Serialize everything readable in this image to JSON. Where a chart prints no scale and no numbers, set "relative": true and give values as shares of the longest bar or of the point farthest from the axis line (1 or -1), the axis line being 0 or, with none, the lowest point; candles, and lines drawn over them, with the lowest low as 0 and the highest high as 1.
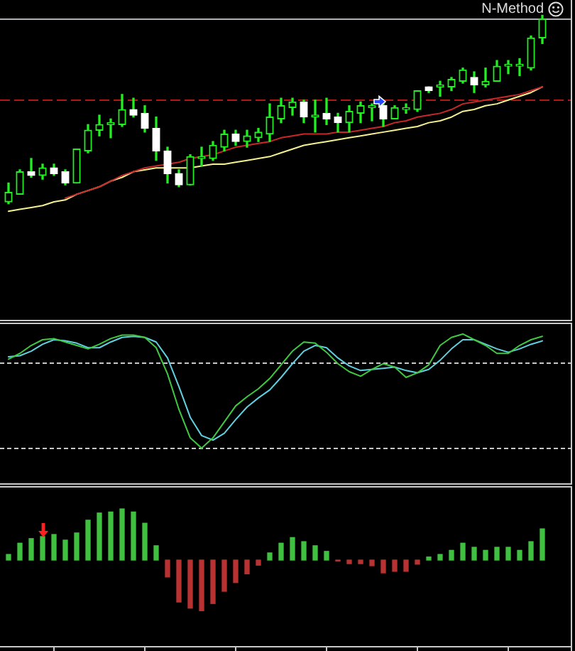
{
  "chart_data": [
    {
      "type": "candlestick",
      "relative": true,
      "title": "N-Method",
      "marker": "none",
      "categories": [
        null,
        null,
        null,
        null,
        null,
        null,
        null,
        null,
        null,
        null,
        null,
        null,
        null,
        null,
        null,
        null,
        null,
        null,
        null,
        null,
        null,
        null,
        null,
        null,
        null,
        null,
        null,
        null,
        null,
        null,
        null,
        null,
        null,
        null,
        null,
        null,
        null,
        null,
        null,
        null,
        null,
        null,
        null,
        null,
        null,
        null,
        null,
        null
      ],
      "ohlc": [
        [
          0.01,
          0.11,
          0,
          0.06
        ],
        [
          0.05,
          0.18,
          0.05,
          0.17
        ],
        [
          0.17,
          0.24,
          0.14,
          0.15
        ],
        [
          0.15,
          0.21,
          0.13,
          0.19
        ],
        [
          0.19,
          0.21,
          0.15,
          0.16
        ],
        [
          0.17,
          0.18,
          0.1,
          0.11
        ],
        [
          0.11,
          0.29,
          0.11,
          0.29
        ],
        [
          0.28,
          0.42,
          0.27,
          0.39
        ],
        [
          0.39,
          0.47,
          0.36,
          0.42
        ],
        [
          0.42,
          0.45,
          0.35,
          0.43
        ],
        [
          0.42,
          0.58,
          0.41,
          0.5
        ],
        [
          0.5,
          0.56,
          0.46,
          0.47
        ],
        [
          0.48,
          0.52,
          0.38,
          0.4
        ],
        [
          0.4,
          0.46,
          0.23,
          0.28
        ],
        [
          0.28,
          0.3,
          0.11,
          0.16
        ],
        [
          0.16,
          0.18,
          0.09,
          0.1
        ],
        [
          0.1,
          0.26,
          0.1,
          0.25
        ],
        [
          0.24,
          0.3,
          0.2,
          0.25
        ],
        [
          0.24,
          0.33,
          0.23,
          0.31
        ],
        [
          0.3,
          0.39,
          0.28,
          0.37
        ],
        [
          0.37,
          0.39,
          0.31,
          0.33
        ],
        [
          0.33,
          0.39,
          0.3,
          0.36
        ],
        [
          0.35,
          0.4,
          0.33,
          0.38
        ],
        [
          0.37,
          0.53,
          0.33,
          0.46
        ],
        [
          0.45,
          0.56,
          0.43,
          0.52
        ],
        [
          0.51,
          0.56,
          0.47,
          0.54
        ],
        [
          0.54,
          0.55,
          0.43,
          0.46
        ],
        [
          0.46,
          0.55,
          0.38,
          0.47
        ],
        [
          0.48,
          0.56,
          0.42,
          0.45
        ],
        [
          0.46,
          0.48,
          0.38,
          0.43
        ],
        [
          0.43,
          0.52,
          0.38,
          0.49
        ],
        [
          0.48,
          0.54,
          0.43,
          0.52
        ],
        [
          0.51,
          0.53,
          0.44,
          0.52
        ],
        [
          0.52,
          0.54,
          0.41,
          0.45
        ],
        [
          0.45,
          0.52,
          0.45,
          0.51
        ],
        [
          0.5,
          0.53,
          0.48,
          0.51
        ],
        [
          0.5,
          0.6,
          0.49,
          0.6
        ],
        [
          0.62,
          0.62,
          0.59,
          0.6
        ],
        [
          0.62,
          0.65,
          0.57,
          0.63
        ],
        [
          0.62,
          0.67,
          0.6,
          0.66
        ],
        [
          0.65,
          0.72,
          0.64,
          0.71
        ],
        [
          0.67,
          0.7,
          0.59,
          0.63
        ],
        [
          0.63,
          0.72,
          0.62,
          0.65
        ],
        [
          0.65,
          0.76,
          0.65,
          0.73
        ],
        [
          0.73,
          0.76,
          0.69,
          0.74
        ],
        [
          0.73,
          0.77,
          0.68,
          0.74
        ],
        [
          0.72,
          0.89,
          0.71,
          0.88
        ],
        [
          0.88,
          1,
          0.85,
          0.98
        ]
      ],
      "color": "#22ee22",
      "colors": [
        "#22ee22",
        "#22ee22",
        "#ffffff",
        "#22ee22",
        "#ffffff",
        "#ffffff",
        "#22ee22",
        "#22ee22",
        "#22ee22",
        "#22ee22",
        "#22ee22",
        "#ffffff",
        "#ffffff",
        "#ffffff",
        "#ffffff",
        "#ffffff",
        "#22ee22",
        "#22ee22",
        "#22ee22",
        "#22ee22",
        "#ffffff",
        "#22ee22",
        "#22ee22",
        "#22ee22",
        "#22ee22",
        "#22ee22",
        "#ffffff",
        "#22ee22",
        "#ffffff",
        "#ffffff",
        "#22ee22",
        "#22ee22",
        "#22ee22",
        "#ffffff",
        "#22ee22",
        "#22ee22",
        "#22ee22",
        "#ffffff",
        "#22ee22",
        "#22ee22",
        "#22ee22",
        "#ffffff",
        "#22ee22",
        "#22ee22",
        "#22ee22",
        "#22ee22",
        "#22ee22",
        "#22ee22"
      ],
      "series": [
        {
          "type": "line",
          "color": "#c82828",
          "values": [
            null,
            null,
            null,
            null,
            null,
            0.03,
            0.05,
            0.07,
            0.09,
            0.12,
            0.15,
            0.17,
            0.19,
            0.2,
            0.21,
            0.22,
            0.24,
            0.25,
            0.26,
            0.28,
            0.3,
            0.31,
            0.32,
            0.33,
            0.35,
            0.36,
            0.37,
            0.37,
            0.37,
            0.38,
            0.38,
            0.39,
            0.4,
            0.41,
            0.43,
            0.44,
            0.46,
            0.47,
            0.48,
            0.5,
            0.53,
            0.54,
            0.55,
            0.56,
            0.57,
            0.58,
            0.6,
            0.62
          ]
        },
        {
          "type": "line",
          "color": "#f5f090",
          "values": [
            -0.04,
            -0.03,
            -0.02,
            -0.01,
            0.01,
            0.02,
            0.05,
            0.07,
            0.09,
            0.12,
            0.14,
            0.17,
            0.18,
            0.19,
            0.19,
            0.19,
            0.19,
            0.2,
            0.21,
            0.21,
            0.22,
            0.23,
            0.24,
            0.25,
            0.27,
            0.29,
            0.31,
            0.32,
            0.33,
            0.34,
            0.35,
            0.36,
            0.37,
            0.38,
            0.39,
            0.4,
            0.41,
            0.43,
            0.44,
            0.46,
            0.49,
            0.5,
            0.52,
            0.53,
            0.55,
            0.57,
            0.59,
            0.62
          ]
        }
      ],
      "ref_lines": [
        {
          "axis": "y",
          "value": 0.55,
          "color": "#b01818",
          "line_style": "dashed"
        },
        {
          "axis": "y",
          "value": 0.98,
          "color": "#b0b0b8"
        }
      ]
    },
    {
      "type": "line",
      "relative": true,
      "marker": "none",
      "categories": [
        null,
        null,
        null,
        null,
        null,
        null,
        null,
        null,
        null,
        null,
        null,
        null,
        null,
        null,
        null,
        null,
        null,
        null,
        null,
        null,
        null,
        null,
        null,
        null,
        null,
        null,
        null,
        null,
        null,
        null,
        null,
        null,
        null,
        null,
        null,
        null,
        null,
        null,
        null,
        null,
        null,
        null,
        null,
        null,
        null,
        null,
        null,
        null
      ],
      "series": [
        {
          "color": "#40c840",
          "values": [
            0.78,
            0.83,
            0.9,
            0.95,
            0.96,
            0.93,
            0.9,
            0.87,
            0.91,
            0.96,
            0.99,
            0.99,
            0.97,
            0.88,
            0.65,
            0.34,
            0.09,
            0,
            0.09,
            0.23,
            0.37,
            0.45,
            0.52,
            0.61,
            0.73,
            0.85,
            0.93,
            0.92,
            0.84,
            0.74,
            0.67,
            0.63,
            0.69,
            0.74,
            0.71,
            0.62,
            0.66,
            0.73,
            0.9,
            0.97,
            1,
            0.95,
            0.9,
            0.83,
            0.83,
            0.9,
            0.95,
            0.98
          ]
        },
        {
          "color": "#60d0e0",
          "values": [
            0.8,
            0.81,
            0.85,
            0.91,
            0.95,
            0.94,
            0.92,
            0.88,
            0.88,
            0.93,
            0.97,
            0.98,
            0.97,
            0.93,
            0.79,
            0.54,
            0.27,
            0.11,
            0.07,
            0.13,
            0.25,
            0.36,
            0.44,
            0.51,
            0.62,
            0.74,
            0.85,
            0.9,
            0.88,
            0.79,
            0.72,
            0.68,
            0.69,
            0.7,
            0.71,
            0.68,
            0.66,
            0.69,
            0.77,
            0.87,
            0.95,
            0.95,
            0.91,
            0.87,
            0.84,
            0.87,
            0.91,
            0.94
          ]
        }
      ],
      "ref_lines": [
        {
          "axis": "y",
          "value": 0.75,
          "color": "#c8c8c8",
          "line_style": "dotted"
        },
        {
          "axis": "y",
          "value": 0,
          "color": "#c8c8c8",
          "line_style": "dotted"
        }
      ]
    },
    {
      "type": "bar",
      "relative": true,
      "categories": [
        null,
        null,
        null,
        null,
        null,
        null,
        null,
        null,
        null,
        null,
        null,
        null,
        null,
        null,
        null,
        null,
        null,
        null,
        null,
        null,
        null,
        null,
        null,
        null,
        null,
        null,
        null,
        null,
        null,
        null,
        null,
        null,
        null,
        null,
        null,
        null,
        null,
        null,
        null,
        null,
        null,
        null,
        null,
        null,
        null,
        null,
        null,
        null
      ],
      "values": [
        0.11,
        0.33,
        0.42,
        0.46,
        0.5,
        0.39,
        0.53,
        0.78,
        0.92,
        0.94,
        1,
        0.94,
        0.72,
        0.28,
        -0.33,
        -0.82,
        -0.94,
        -0.99,
        -0.85,
        -0.61,
        -0.44,
        -0.27,
        -0.1,
        0.14,
        0.33,
        0.44,
        0.36,
        0.28,
        0.17,
        -0.02,
        -0.07,
        -0.07,
        -0.11,
        -0.25,
        -0.22,
        -0.22,
        -0.08,
        0.06,
        0.11,
        0.19,
        0.33,
        0.25,
        0.19,
        0.25,
        0.25,
        0.19,
        0.36,
        0.61
      ],
      "colors": [
        "#40c040",
        "#40c040",
        "#40c040",
        "#40c040",
        "#40c040",
        "#40c040",
        "#40c040",
        "#40c040",
        "#40c040",
        "#40c040",
        "#40c040",
        "#40c040",
        "#40c040",
        "#40c040",
        "#b83232",
        "#b83232",
        "#b83232",
        "#b83232",
        "#b83232",
        "#b83232",
        "#b83232",
        "#b83232",
        "#b83232",
        "#40c040",
        "#40c040",
        "#40c040",
        "#40c040",
        "#40c040",
        "#40c040",
        "#b83232",
        "#b83232",
        "#b83232",
        "#b83232",
        "#b83232",
        "#b83232",
        "#b83232",
        "#b83232",
        "#40c040",
        "#40c040",
        "#40c040",
        "#40c040",
        "#40c040",
        "#40c040",
        "#40c040",
        "#40c040",
        "#40c040",
        "#40c040",
        "#40c040"
      ]
    }
  ]
}
